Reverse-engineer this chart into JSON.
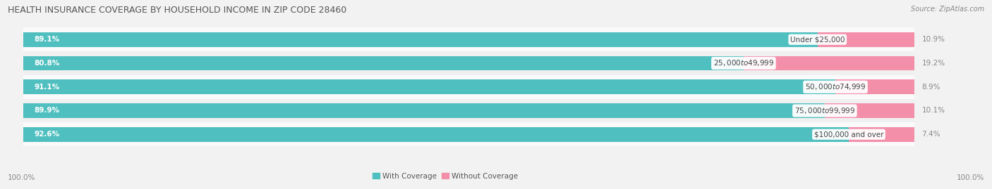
{
  "title": "HEALTH INSURANCE COVERAGE BY HOUSEHOLD INCOME IN ZIP CODE 28460",
  "source": "Source: ZipAtlas.com",
  "categories": [
    "Under $25,000",
    "$25,000 to $49,999",
    "$50,000 to $74,999",
    "$75,000 to $99,999",
    "$100,000 and over"
  ],
  "with_coverage": [
    89.1,
    80.8,
    91.1,
    89.9,
    92.6
  ],
  "without_coverage": [
    10.9,
    19.2,
    8.9,
    10.1,
    7.4
  ],
  "color_with": "#50BFBF",
  "color_without": "#F48FAA",
  "figsize": [
    14.06,
    2.69
  ],
  "dpi": 100,
  "title_fontsize": 9.0,
  "label_fontsize": 7.5,
  "category_fontsize": 7.5,
  "legend_fontsize": 7.5,
  "axis_label_fontsize": 7.5,
  "background_color": "#F2F2F2",
  "row_colors": [
    "#FAFAFA",
    "#F0F0F0",
    "#FAFAFA",
    "#F0F0F0",
    "#FAFAFA"
  ]
}
